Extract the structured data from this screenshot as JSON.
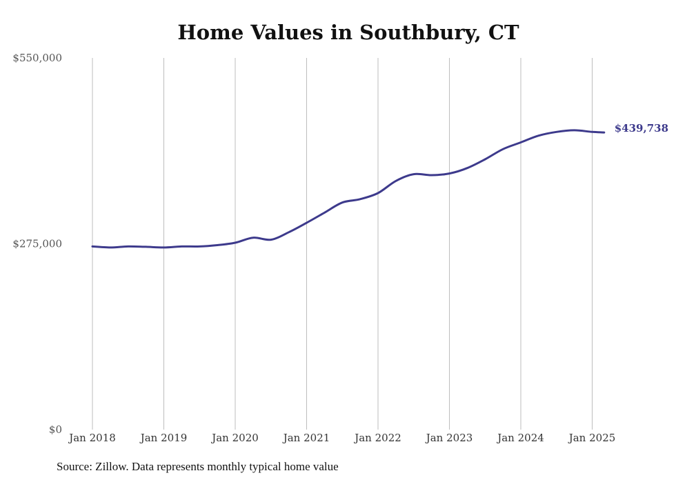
{
  "chart_data": {
    "type": "line",
    "title": "Home Values in Southbury, CT",
    "xlabel": "",
    "ylabel": "",
    "ylim": [
      0,
      550000
    ],
    "yticks": [
      {
        "value": 0,
        "label": "$0"
      },
      {
        "value": 275000,
        "label": "$275,000"
      },
      {
        "value": 550000,
        "label": "$550,000"
      }
    ],
    "xlim": [
      2018.0,
      2025.2
    ],
    "xticks": [
      {
        "value": 2018,
        "label": "Jan 2018"
      },
      {
        "value": 2019,
        "label": "Jan 2019"
      },
      {
        "value": 2020,
        "label": "Jan 2020"
      },
      {
        "value": 2021,
        "label": "Jan 2021"
      },
      {
        "value": 2022,
        "label": "Jan 2022"
      },
      {
        "value": 2023,
        "label": "Jan 2023"
      },
      {
        "value": 2024,
        "label": "Jan 2024"
      },
      {
        "value": 2025,
        "label": "Jan 2025"
      }
    ],
    "grid": "vertical",
    "legend": "none",
    "line_color": "#3d3a8c",
    "end_label": "$439,738",
    "series": [
      {
        "x": [
          "2018-01",
          "2018-04",
          "2018-07",
          "2018-10",
          "2019-01",
          "2019-04",
          "2019-07",
          "2019-10",
          "2020-01",
          "2020-04",
          "2020-07",
          "2020-10",
          "2021-01",
          "2021-04",
          "2021-07",
          "2021-10",
          "2022-01",
          "2022-04",
          "2022-07",
          "2022-10",
          "2023-01",
          "2023-04",
          "2023-07",
          "2023-10",
          "2024-01",
          "2024-04",
          "2024-07",
          "2024-10",
          "2025-01",
          "2025-03"
        ],
        "values": [
          271000,
          269500,
          271000,
          270500,
          269500,
          271000,
          271000,
          273000,
          276500,
          284000,
          281000,
          292000,
          306000,
          321000,
          336000,
          341000,
          350000,
          368000,
          378000,
          376500,
          379000,
          387000,
          400000,
          415000,
          425000,
          435000,
          440500,
          443000,
          440500,
          439738
        ]
      }
    ],
    "source": "Source: Zillow. Data represents monthly typical home value"
  }
}
